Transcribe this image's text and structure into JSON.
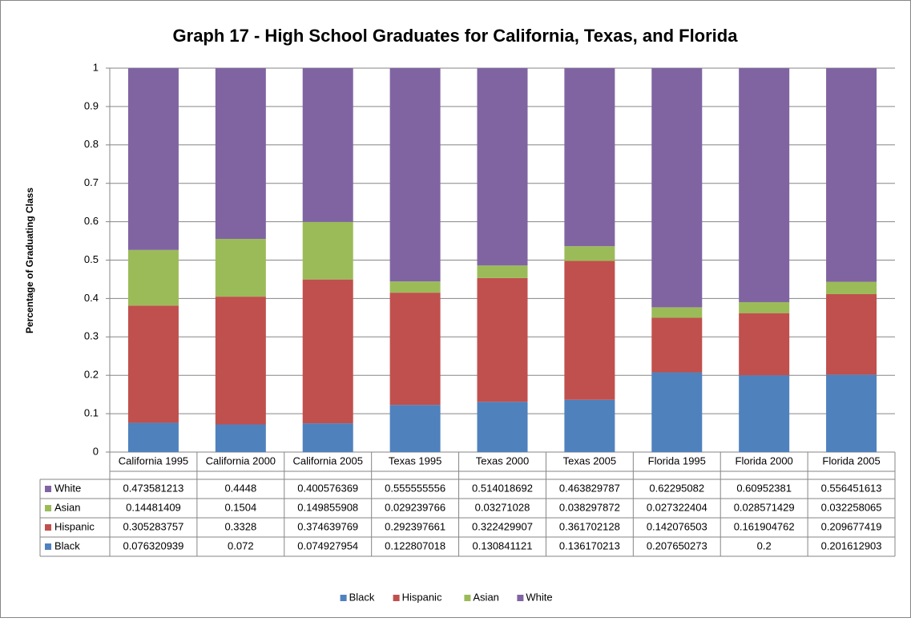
{
  "chart_data": {
    "type": "stacked_bar",
    "title": "Graph 17 - High School Graduates for California, Texas, and Florida",
    "y_label": "Percentage of Graduating Class",
    "categories": [
      "California 1995",
      "California 2000",
      "California 2005",
      "Texas 1995",
      "Texas 2000",
      "Texas 2005",
      "Florida 1995",
      "Florida 2000",
      "Florida 2005"
    ],
    "series": [
      {
        "name": "Black",
        "color": "#4f81bd",
        "values": [
          0.076320939,
          0.072,
          0.074927954,
          0.122807018,
          0.130841121,
          0.136170213,
          0.207650273,
          0.2,
          0.201612903
        ]
      },
      {
        "name": "Hispanic",
        "color": "#c0504d",
        "values": [
          0.305283757,
          0.3328,
          0.374639769,
          0.292397661,
          0.322429907,
          0.361702128,
          0.142076503,
          0.161904762,
          0.209677419
        ]
      },
      {
        "name": "Asian",
        "color": "#9bbb59",
        "values": [
          0.14481409,
          0.1504,
          0.149855908,
          0.029239766,
          0.03271028,
          0.038297872,
          0.027322404,
          0.028571429,
          0.032258065
        ]
      },
      {
        "name": "White",
        "color": "#8064a2",
        "values": [
          0.473581213,
          0.4448,
          0.400576369,
          0.555555556,
          0.514018692,
          0.463829787,
          0.62295082,
          0.60952381,
          0.556451613
        ]
      }
    ],
    "ylim": [
      0,
      1
    ],
    "yticks": [
      0,
      0.1,
      0.2,
      0.3,
      0.4,
      0.5,
      0.6,
      0.7,
      0.8,
      0.9,
      1
    ],
    "grid": true,
    "legend": "bottom"
  }
}
